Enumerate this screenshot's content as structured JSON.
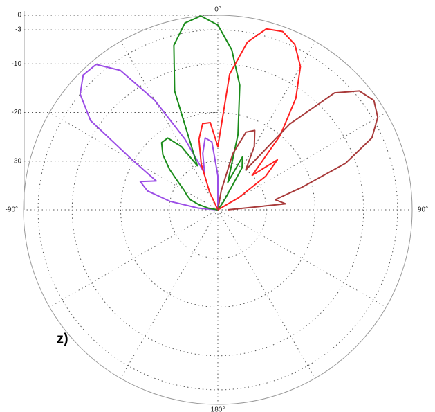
{
  "chart_data": {
    "type": "polar",
    "caption": "z)",
    "rlim": [
      -40,
      0
    ],
    "rticks": [
      0,
      -3,
      -10,
      -20,
      -30
    ],
    "thetaticks": [
      {
        "value": 0,
        "label": "0°"
      },
      {
        "value": 90,
        "label": "90°"
      },
      {
        "value": 180,
        "label": "180°"
      },
      {
        "value": -90,
        "label": "-90°"
      }
    ],
    "thetagrid": [
      0,
      30,
      60,
      90,
      120,
      150,
      180,
      -150,
      -120,
      -90,
      -60,
      -30
    ],
    "x": [
      -90,
      -85,
      -80,
      -75,
      -70,
      -65,
      -60,
      -55,
      -50,
      -45,
      -40,
      -35,
      -30,
      -25,
      -20,
      -15,
      -10,
      -5,
      0,
      5,
      10,
      15,
      20,
      25,
      30,
      35,
      40,
      45,
      50,
      55,
      60,
      65,
      70,
      75,
      80,
      85,
      90
    ],
    "series": [
      {
        "color": "#9b4de6",
        "values": [
          -40,
          -36,
          -30,
          -25,
          -23,
          -26,
          -20,
          -8,
          -3,
          -0.8,
          -1,
          -5,
          -14,
          -24,
          -32,
          -28,
          -25,
          -26,
          -33,
          -40,
          -40,
          -40,
          -40,
          -40,
          -40,
          -40,
          -40,
          -40,
          -40,
          -40,
          -40,
          -40,
          -40,
          -40,
          -40,
          -40,
          -40
        ]
      },
      {
        "color": "#1a8c1a",
        "values": [
          -40,
          -40,
          -38,
          -36,
          -34,
          -33,
          -32,
          -30,
          -27,
          -24,
          -22,
          -22,
          -25,
          -30,
          -14,
          -5,
          -1,
          0,
          -2,
          -7,
          -14,
          -24,
          -34,
          -28,
          -30,
          -38,
          -40,
          -40,
          -40,
          -40,
          -40,
          -40,
          -40,
          -40,
          -40,
          -40,
          -40
        ]
      },
      {
        "color": "#ff2020",
        "values": [
          -40,
          -40,
          -40,
          -40,
          -40,
          -40,
          -40,
          -40,
          -40,
          -40,
          -40,
          -40,
          -40,
          -36,
          -30,
          -25,
          -22,
          -22,
          -27,
          -12,
          -5,
          -1.5,
          -1,
          -2.5,
          -6,
          -12,
          -20,
          -30,
          -24,
          -28,
          -35,
          -40,
          -40,
          -40,
          -40,
          -40,
          -40
        ]
      },
      {
        "color": "#a83a3a",
        "values": [
          -40,
          -40,
          -40,
          -40,
          -40,
          -40,
          -40,
          -40,
          -40,
          -40,
          -40,
          -40,
          -40,
          -40,
          -40,
          -40,
          -40,
          -40,
          -40,
          -40,
          -36,
          -28,
          -23,
          -22,
          -25,
          -30,
          -17,
          -6,
          -2,
          -0.8,
          -2,
          -5,
          -12,
          -22,
          -28,
          -26,
          -38
        ]
      }
    ]
  }
}
